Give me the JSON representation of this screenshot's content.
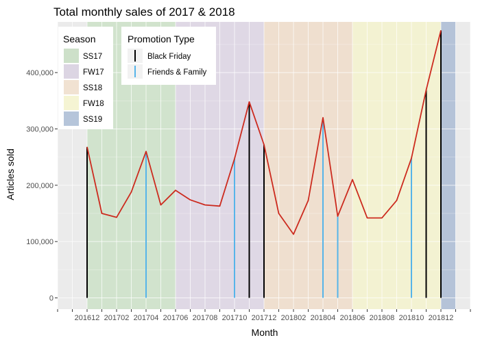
{
  "chart_data": {
    "type": "line",
    "title": "Total monthly sales of 2017 & 2018",
    "xlabel": "Month",
    "ylabel": "Articles sold",
    "ylim": [
      -20000,
      490000
    ],
    "y_ticks": [
      0,
      100000,
      200000,
      300000,
      400000
    ],
    "y_tick_labels": [
      "0",
      "100,000",
      "200,000",
      "300,000",
      "400,000"
    ],
    "x_tick_labels": [
      "201612",
      "201702",
      "201704",
      "201706",
      "201708",
      "201710",
      "201712",
      "201802",
      "201804",
      "201806",
      "201808",
      "201810",
      "201812"
    ],
    "grid": true,
    "line_color": "#cc2a1e",
    "series": [
      {
        "values": [
          [
            "201612",
            268000
          ],
          [
            "201701",
            150000
          ],
          [
            "201702",
            143000
          ],
          [
            "201703",
            188000
          ],
          [
            "201704",
            260000
          ],
          [
            "201705",
            165000
          ],
          [
            "201706",
            191000
          ],
          [
            "201707",
            174000
          ],
          [
            "201708",
            165000
          ],
          [
            "201709",
            163000
          ],
          [
            "201710",
            247000
          ],
          [
            "201711",
            348000
          ],
          [
            "201712",
            272000
          ],
          [
            "201801",
            150000
          ],
          [
            "201802",
            113000
          ],
          [
            "201803",
            173000
          ],
          [
            "201804",
            320000
          ],
          [
            "201805",
            145000
          ],
          [
            "201806",
            210000
          ],
          [
            "201807",
            142000
          ],
          [
            "201808",
            142000
          ],
          [
            "201809",
            173000
          ],
          [
            "201810",
            248000
          ],
          [
            "201811",
            369000
          ],
          [
            "201812",
            475000
          ]
        ]
      }
    ],
    "seasons": {
      "legend_title": "Season",
      "items": [
        {
          "label": "SS17",
          "start": "201612",
          "end": "201706",
          "color": "#d1e3cd",
          "legend_color": "#cde0c9"
        },
        {
          "label": "FW17",
          "start": "201706",
          "end": "201712",
          "color": "#dfd8e5",
          "legend_color": "#dcd5e3"
        },
        {
          "label": "SS18",
          "start": "201712",
          "end": "201806",
          "color": "#efdfcf",
          "legend_color": "#f1e2d2"
        },
        {
          "label": "FW18",
          "start": "201806",
          "end": "201812",
          "color": "#f3f2d2",
          "legend_color": "#f5f4d3"
        },
        {
          "label": "SS19",
          "start": "201812",
          "end": "201901",
          "color": "#b5c3d8",
          "legend_color": "#b6c5da"
        }
      ]
    },
    "promotions": {
      "legend_title": "Promotion Type",
      "types": [
        {
          "label": "Black Friday",
          "color": "#000000"
        },
        {
          "label": "Friends & Family",
          "color": "#56b4e9"
        }
      ],
      "events": [
        {
          "month": "201612",
          "type": "Black Friday",
          "value": 268000
        },
        {
          "month": "201704",
          "type": "Friends & Family",
          "value": 260000
        },
        {
          "month": "201710",
          "type": "Friends & Family",
          "value": 247000
        },
        {
          "month": "201711",
          "type": "Black Friday",
          "value": 348000
        },
        {
          "month": "201712",
          "type": "Black Friday",
          "value": 272000
        },
        {
          "month": "201804",
          "type": "Friends & Family",
          "value": 320000
        },
        {
          "month": "201805",
          "type": "Friends & Family",
          "value": 145000
        },
        {
          "month": "201810",
          "type": "Friends & Family",
          "value": 248000
        },
        {
          "month": "201811",
          "type": "Black Friday",
          "value": 369000
        },
        {
          "month": "201812",
          "type": "Black Friday",
          "value": 475000
        }
      ]
    },
    "legend_position": "top-left inside"
  }
}
